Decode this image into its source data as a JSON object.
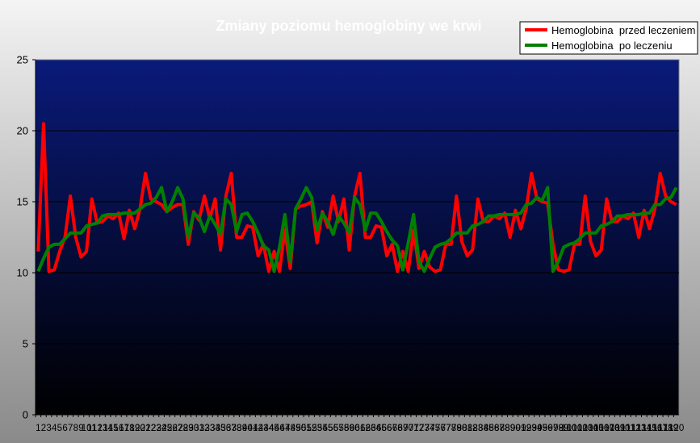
{
  "colors": {
    "plot_top": "#0a1a7a",
    "plot_bottom": "#000000",
    "series_before": "#ff0000",
    "series_after": "#008000",
    "gridline": "#000000"
  },
  "chart_data": {
    "type": "line",
    "title": "Zmiany poziomu hemoglobiny we krwi",
    "xlabel": "",
    "ylabel": "",
    "ylim": [
      0,
      25
    ],
    "yticks": [
      0,
      5,
      10,
      15,
      20,
      25
    ],
    "grid": true,
    "legend_position": "top-right",
    "x": [
      1,
      2,
      3,
      4,
      5,
      6,
      7,
      8,
      9,
      10,
      11,
      12,
      13,
      14,
      15,
      16,
      17,
      18,
      19,
      20,
      21,
      22,
      23,
      24,
      25,
      26,
      27,
      28,
      29,
      30,
      31,
      32,
      33,
      34,
      35,
      36,
      37,
      38,
      39,
      40,
      41,
      42,
      43,
      44,
      45,
      46,
      47,
      48,
      49,
      50,
      51,
      52,
      53,
      54,
      55,
      56,
      57,
      58,
      59,
      60,
      61,
      62,
      63,
      64,
      65,
      66,
      67,
      68,
      69,
      70,
      71,
      72,
      73,
      74,
      75,
      76,
      77,
      78,
      79,
      80,
      81,
      82,
      83,
      84,
      85,
      86,
      87,
      88,
      89,
      90,
      91,
      92,
      93,
      94,
      95,
      96,
      97,
      98,
      99,
      100,
      101,
      102,
      103,
      104,
      105,
      106,
      107,
      108,
      109,
      110,
      111,
      112,
      113,
      114,
      115,
      116,
      117,
      118,
      119,
      120
    ],
    "series": [
      {
        "name": "Hemoglobina  przed leczeniem",
        "color": "#ff0000",
        "values": [
          11.5,
          20.5,
          10.1,
          10.2,
          11.5,
          12.5,
          15.4,
          12.5,
          11.1,
          11.5,
          15.2,
          13.5,
          13.6,
          14.0,
          13.8,
          14.2,
          12.4,
          14.4,
          13.1,
          14.5,
          17.0,
          15.2,
          15.0,
          14.8,
          14.3,
          14.6,
          14.8,
          14.8,
          12.0,
          14.3,
          13.7,
          15.4,
          13.8,
          15.2,
          11.6,
          15.4,
          17.0,
          12.5,
          12.5,
          13.3,
          13.2,
          11.2,
          12.0,
          10.1,
          11.5,
          10.1,
          13.0,
          10.3,
          14.5,
          14.7,
          14.8,
          15.0,
          12.1,
          14.3,
          13.2,
          15.4,
          13.6,
          15.2,
          11.6,
          15.4,
          17.0,
          12.5,
          12.5,
          13.3,
          13.2,
          11.2,
          12.0,
          10.1,
          11.5,
          10.1,
          13.0,
          10.3,
          11.5,
          10.4,
          10.1,
          10.2,
          12.0,
          12.0,
          15.4,
          12.2,
          11.2,
          11.6,
          15.2,
          13.6,
          13.6,
          14.0,
          13.8,
          14.2,
          12.5,
          14.4,
          13.1,
          14.5,
          17.0,
          15.2,
          15.0,
          14.9,
          12.0,
          10.2,
          10.1,
          10.2,
          12.0,
          12.0,
          15.4,
          12.2,
          11.2,
          11.6,
          15.2,
          13.6,
          13.6,
          14.0,
          13.8,
          14.2,
          12.5,
          14.4,
          13.1,
          14.5,
          17.0,
          15.4,
          15.0,
          14.8
        ]
      },
      {
        "name": "Hemoglobina  po leczeniu",
        "color": "#008000",
        "values": [
          10.1,
          11.0,
          11.8,
          12.0,
          12.0,
          12.4,
          12.8,
          12.8,
          12.8,
          13.3,
          13.4,
          13.5,
          14.0,
          14.1,
          14.1,
          14.1,
          14.2,
          14.2,
          14.2,
          14.5,
          14.8,
          14.9,
          15.3,
          16.0,
          14.3,
          15.0,
          16.0,
          15.2,
          12.5,
          14.2,
          13.9,
          12.9,
          14.0,
          13.4,
          12.7,
          15.2,
          14.8,
          12.9,
          14.1,
          14.2,
          13.6,
          12.8,
          11.9,
          11.6,
          10.1,
          11.8,
          14.1,
          10.8,
          14.5,
          15.2,
          16.0,
          15.3,
          13.0,
          14.2,
          13.6,
          12.7,
          14.0,
          13.5,
          12.8,
          15.3,
          14.8,
          13.0,
          14.2,
          14.2,
          13.6,
          12.9,
          12.3,
          11.9,
          10.2,
          12.1,
          14.1,
          10.8,
          10.1,
          11.0,
          11.8,
          12.0,
          12.1,
          12.4,
          12.8,
          12.8,
          12.8,
          13.3,
          13.4,
          13.6,
          14.0,
          14.0,
          14.1,
          14.1,
          14.1,
          14.1,
          14.2,
          14.8,
          14.9,
          15.3,
          15.1,
          16.0,
          10.1,
          10.8,
          11.8,
          12.0,
          12.1,
          12.4,
          12.8,
          12.8,
          12.8,
          13.3,
          13.4,
          13.6,
          14.0,
          14.0,
          14.1,
          14.1,
          14.1,
          14.2,
          14.2,
          14.8,
          14.8,
          15.2,
          15.3,
          16.0
        ]
      }
    ]
  }
}
